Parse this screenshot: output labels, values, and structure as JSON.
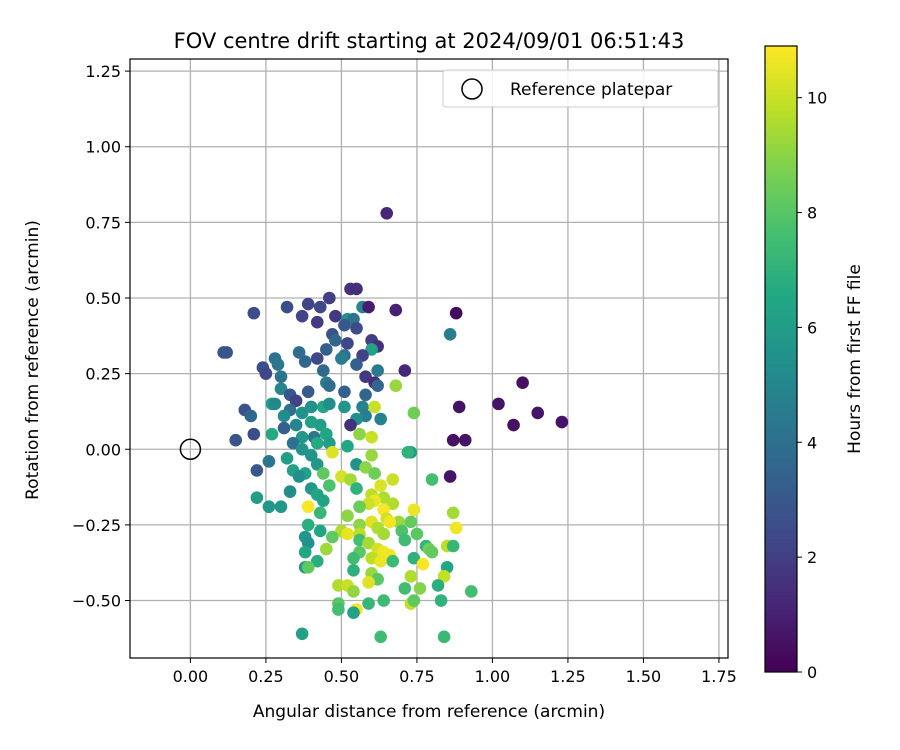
{
  "chart_data": {
    "type": "scatter",
    "title": "FOV centre drift starting at 2024/09/01 06:51:43",
    "xlabel": "Angular distance from reference (arcmin)",
    "ylabel": "Rotation from reference (arcmin)",
    "xlim": [
      -0.2,
      1.78
    ],
    "ylim": [
      -0.69,
      1.29
    ],
    "xticks": [
      0.0,
      0.25,
      0.5,
      0.75,
      1.0,
      1.25,
      1.5,
      1.75
    ],
    "xtick_labels": [
      "0.00",
      "0.25",
      "0.50",
      "0.75",
      "1.00",
      "1.25",
      "1.50",
      "1.75"
    ],
    "yticks": [
      -0.5,
      -0.25,
      0.0,
      0.25,
      0.5,
      0.75,
      1.0,
      1.25
    ],
    "ytick_labels": [
      "−0.50",
      "−0.25",
      "0.00",
      "0.25",
      "0.50",
      "0.75",
      "1.00",
      "1.25"
    ],
    "grid": true,
    "legend": {
      "location": "upper-right",
      "entries": [
        "Reference platepar"
      ]
    },
    "reference_point": {
      "x": 0.0,
      "y": 0.0,
      "label": "Reference platepar"
    },
    "colorbar": {
      "label": "Hours from first FF file",
      "colormap": "viridis",
      "range": [
        0,
        10.9
      ],
      "ticks": [
        0,
        2,
        4,
        6,
        8,
        10
      ],
      "tick_labels": [
        "0",
        "2",
        "4",
        "6",
        "8",
        "10"
      ]
    },
    "points": [
      {
        "x": 0.65,
        "y": 0.78,
        "c": 1.2
      },
      {
        "x": 0.53,
        "y": 0.53,
        "c": 1.6
      },
      {
        "x": 0.55,
        "y": 0.53,
        "c": 1.4
      },
      {
        "x": 0.46,
        "y": 0.5,
        "c": 2.0
      },
      {
        "x": 0.39,
        "y": 0.48,
        "c": 2.2
      },
      {
        "x": 0.32,
        "y": 0.47,
        "c": 2.6
      },
      {
        "x": 0.43,
        "y": 0.47,
        "c": 2.4
      },
      {
        "x": 0.57,
        "y": 0.47,
        "c": 5.0
      },
      {
        "x": 0.59,
        "y": 0.47,
        "c": 0.9
      },
      {
        "x": 0.68,
        "y": 0.46,
        "c": 1.0
      },
      {
        "x": 0.88,
        "y": 0.45,
        "c": 0.3
      },
      {
        "x": 0.21,
        "y": 0.45,
        "c": 2.6
      },
      {
        "x": 0.37,
        "y": 0.44,
        "c": 2.2
      },
      {
        "x": 0.48,
        "y": 0.44,
        "c": 1.8
      },
      {
        "x": 0.52,
        "y": 0.43,
        "c": 5.5
      },
      {
        "x": 0.54,
        "y": 0.43,
        "c": 4.2
      },
      {
        "x": 0.42,
        "y": 0.42,
        "c": 1.9
      },
      {
        "x": 0.51,
        "y": 0.41,
        "c": 3.0
      },
      {
        "x": 0.55,
        "y": 0.4,
        "c": 2.5
      },
      {
        "x": 0.86,
        "y": 0.38,
        "c": 4.6
      },
      {
        "x": 0.47,
        "y": 0.38,
        "c": 2.8
      },
      {
        "x": 0.48,
        "y": 0.36,
        "c": 3.6
      },
      {
        "x": 0.6,
        "y": 0.36,
        "c": 2.0
      },
      {
        "x": 0.52,
        "y": 0.35,
        "c": 2.3
      },
      {
        "x": 0.62,
        "y": 0.34,
        "c": 1.5
      },
      {
        "x": 0.6,
        "y": 0.33,
        "c": 6.2
      },
      {
        "x": 0.45,
        "y": 0.33,
        "c": 3.3
      },
      {
        "x": 0.11,
        "y": 0.32,
        "c": 3.0
      },
      {
        "x": 0.12,
        "y": 0.32,
        "c": 2.8
      },
      {
        "x": 0.36,
        "y": 0.32,
        "c": 3.9
      },
      {
        "x": 0.51,
        "y": 0.31,
        "c": 4.0
      },
      {
        "x": 0.57,
        "y": 0.31,
        "c": 2.1
      },
      {
        "x": 0.42,
        "y": 0.3,
        "c": 2.4
      },
      {
        "x": 0.28,
        "y": 0.3,
        "c": 4.1
      },
      {
        "x": 0.5,
        "y": 0.3,
        "c": 4.6
      },
      {
        "x": 0.38,
        "y": 0.29,
        "c": 3.6
      },
      {
        "x": 0.29,
        "y": 0.28,
        "c": 4.3
      },
      {
        "x": 0.55,
        "y": 0.28,
        "c": 3.3
      },
      {
        "x": 0.24,
        "y": 0.27,
        "c": 2.6
      },
      {
        "x": 0.44,
        "y": 0.26,
        "c": 3.7
      },
      {
        "x": 0.62,
        "y": 0.26,
        "c": 4.4
      },
      {
        "x": 0.71,
        "y": 0.26,
        "c": 1.2
      },
      {
        "x": 0.25,
        "y": 0.25,
        "c": 2.3
      },
      {
        "x": 0.3,
        "y": 0.24,
        "c": 4.2
      },
      {
        "x": 0.58,
        "y": 0.24,
        "c": 1.8
      },
      {
        "x": 0.45,
        "y": 0.22,
        "c": 4.6
      },
      {
        "x": 0.61,
        "y": 0.22,
        "c": 1.3
      },
      {
        "x": 0.68,
        "y": 0.21,
        "c": 9.2
      },
      {
        "x": 0.46,
        "y": 0.21,
        "c": 3.9
      },
      {
        "x": 0.62,
        "y": 0.21,
        "c": 3.6
      },
      {
        "x": 1.1,
        "y": 0.22,
        "c": 0.5
      },
      {
        "x": 0.3,
        "y": 0.2,
        "c": 4.9
      },
      {
        "x": 0.39,
        "y": 0.19,
        "c": 3.1
      },
      {
        "x": 0.51,
        "y": 0.19,
        "c": 3.3
      },
      {
        "x": 0.33,
        "y": 0.18,
        "c": 3.0
      },
      {
        "x": 0.58,
        "y": 0.18,
        "c": 3.6
      },
      {
        "x": 0.35,
        "y": 0.16,
        "c": 2.1
      },
      {
        "x": 1.02,
        "y": 0.15,
        "c": 0.6
      },
      {
        "x": 0.27,
        "y": 0.15,
        "c": 6.0
      },
      {
        "x": 0.28,
        "y": 0.15,
        "c": 5.1
      },
      {
        "x": 0.44,
        "y": 0.14,
        "c": 6.5
      },
      {
        "x": 0.46,
        "y": 0.15,
        "c": 5.3
      },
      {
        "x": 0.57,
        "y": 0.14,
        "c": 4.8
      },
      {
        "x": 0.61,
        "y": 0.14,
        "c": 10.0
      },
      {
        "x": 0.89,
        "y": 0.14,
        "c": 0.5
      },
      {
        "x": 0.18,
        "y": 0.13,
        "c": 2.7
      },
      {
        "x": 0.4,
        "y": 0.14,
        "c": 5.5
      },
      {
        "x": 0.51,
        "y": 0.14,
        "c": 5.7
      },
      {
        "x": 0.33,
        "y": 0.13,
        "c": 4.0
      },
      {
        "x": 0.37,
        "y": 0.12,
        "c": 5.5
      },
      {
        "x": 1.15,
        "y": 0.12,
        "c": 0.6
      },
      {
        "x": 0.74,
        "y": 0.12,
        "c": 8.5
      },
      {
        "x": 0.2,
        "y": 0.11,
        "c": 3.6
      },
      {
        "x": 0.31,
        "y": 0.11,
        "c": 5.3
      },
      {
        "x": 0.58,
        "y": 0.11,
        "c": 4.6
      },
      {
        "x": 0.55,
        "y": 0.1,
        "c": 5.3
      },
      {
        "x": 0.63,
        "y": 0.1,
        "c": 4.8
      },
      {
        "x": 0.4,
        "y": 0.09,
        "c": 6.2
      },
      {
        "x": 0.53,
        "y": 0.08,
        "c": 1.5
      },
      {
        "x": 1.23,
        "y": 0.09,
        "c": 0.6
      },
      {
        "x": 1.07,
        "y": 0.08,
        "c": 0.5
      },
      {
        "x": 0.35,
        "y": 0.08,
        "c": 4.9
      },
      {
        "x": 0.43,
        "y": 0.08,
        "c": 6.0
      },
      {
        "x": 0.31,
        "y": 0.07,
        "c": 3.3
      },
      {
        "x": 0.27,
        "y": 0.05,
        "c": 6.6
      },
      {
        "x": 0.45,
        "y": 0.05,
        "c": 6.5
      },
      {
        "x": 0.21,
        "y": 0.05,
        "c": 2.6
      },
      {
        "x": 0.56,
        "y": 0.05,
        "c": 9.0
      },
      {
        "x": 0.6,
        "y": 0.04,
        "c": 10.0
      },
      {
        "x": 0.37,
        "y": 0.04,
        "c": 5.8
      },
      {
        "x": 0.41,
        "y": 0.04,
        "c": 4.4
      },
      {
        "x": 0.87,
        "y": 0.03,
        "c": 0.5
      },
      {
        "x": 0.91,
        "y": 0.03,
        "c": 0.6
      },
      {
        "x": 0.15,
        "y": 0.03,
        "c": 2.8
      },
      {
        "x": 0.34,
        "y": 0.02,
        "c": 4.1
      },
      {
        "x": 0.42,
        "y": 0.02,
        "c": 6.6
      },
      {
        "x": 0.46,
        "y": 0.02,
        "c": 6.0
      },
      {
        "x": 0.37,
        "y": 0.0,
        "c": 5.6
      },
      {
        "x": 0.52,
        "y": 0.01,
        "c": 6.5
      },
      {
        "x": 0.73,
        "y": -0.01,
        "c": 6.0
      },
      {
        "x": 0.72,
        "y": -0.01,
        "c": 7.0
      },
      {
        "x": 0.47,
        "y": -0.01,
        "c": 10.3
      },
      {
        "x": 0.6,
        "y": -0.02,
        "c": 9.2
      },
      {
        "x": 0.4,
        "y": -0.02,
        "c": 5.6
      },
      {
        "x": 0.32,
        "y": -0.03,
        "c": 6.0
      },
      {
        "x": 0.26,
        "y": -0.04,
        "c": 4.2
      },
      {
        "x": 0.55,
        "y": -0.05,
        "c": 5.5
      },
      {
        "x": 0.42,
        "y": -0.05,
        "c": 5.8
      },
      {
        "x": 0.58,
        "y": -0.06,
        "c": 9.0
      },
      {
        "x": 0.22,
        "y": -0.07,
        "c": 3.0
      },
      {
        "x": 0.34,
        "y": -0.07,
        "c": 6.2
      },
      {
        "x": 0.38,
        "y": -0.08,
        "c": 6.3
      },
      {
        "x": 0.44,
        "y": -0.08,
        "c": 8.2
      },
      {
        "x": 0.61,
        "y": -0.08,
        "c": 8.5
      },
      {
        "x": 0.36,
        "y": -0.09,
        "c": 5.4
      },
      {
        "x": 0.86,
        "y": -0.09,
        "c": 0.6
      },
      {
        "x": 0.5,
        "y": -0.09,
        "c": 10.2
      },
      {
        "x": 0.67,
        "y": -0.1,
        "c": 10.0
      },
      {
        "x": 0.8,
        "y": -0.1,
        "c": 7.6
      },
      {
        "x": 0.53,
        "y": -0.1,
        "c": 9.4
      },
      {
        "x": 0.46,
        "y": -0.12,
        "c": 7.8
      },
      {
        "x": 0.4,
        "y": -0.13,
        "c": 5.8
      },
      {
        "x": 0.63,
        "y": -0.12,
        "c": 10.3
      },
      {
        "x": 0.55,
        "y": -0.13,
        "c": 7.0
      },
      {
        "x": 0.33,
        "y": -0.14,
        "c": 5.3
      },
      {
        "x": 0.42,
        "y": -0.15,
        "c": 6.4
      },
      {
        "x": 0.6,
        "y": -0.15,
        "c": 9.8
      },
      {
        "x": 0.64,
        "y": -0.16,
        "c": 9.6
      },
      {
        "x": 0.22,
        "y": -0.16,
        "c": 6.0
      },
      {
        "x": 0.61,
        "y": -0.17,
        "c": 10.6
      },
      {
        "x": 0.44,
        "y": -0.17,
        "c": 6.3
      },
      {
        "x": 0.59,
        "y": -0.18,
        "c": 10.1
      },
      {
        "x": 0.67,
        "y": -0.18,
        "c": 9.6
      },
      {
        "x": 0.3,
        "y": -0.19,
        "c": 5.7
      },
      {
        "x": 0.26,
        "y": -0.19,
        "c": 5.8
      },
      {
        "x": 0.39,
        "y": -0.19,
        "c": 10.8
      },
      {
        "x": 0.56,
        "y": -0.19,
        "c": 8.4
      },
      {
        "x": 0.64,
        "y": -0.2,
        "c": 10.8
      },
      {
        "x": 0.74,
        "y": -0.2,
        "c": 10.6
      },
      {
        "x": 0.87,
        "y": -0.21,
        "c": 9.4
      },
      {
        "x": 0.43,
        "y": -0.21,
        "c": 7.2
      },
      {
        "x": 0.52,
        "y": -0.22,
        "c": 9.0
      },
      {
        "x": 0.65,
        "y": -0.23,
        "c": 10.1
      },
      {
        "x": 0.6,
        "y": -0.24,
        "c": 10.4
      },
      {
        "x": 0.69,
        "y": -0.24,
        "c": 9.2
      },
      {
        "x": 0.73,
        "y": -0.24,
        "c": 8.3
      },
      {
        "x": 0.66,
        "y": -0.24,
        "c": 10.7
      },
      {
        "x": 0.39,
        "y": -0.25,
        "c": 6.8
      },
      {
        "x": 0.56,
        "y": -0.25,
        "c": 9.0
      },
      {
        "x": 0.88,
        "y": -0.26,
        "c": 10.7
      },
      {
        "x": 0.62,
        "y": -0.26,
        "c": 9.6
      },
      {
        "x": 0.7,
        "y": -0.27,
        "c": 7.8
      },
      {
        "x": 0.43,
        "y": -0.27,
        "c": 6.4
      },
      {
        "x": 0.5,
        "y": -0.27,
        "c": 9.6
      },
      {
        "x": 0.56,
        "y": -0.28,
        "c": 9.8
      },
      {
        "x": 0.75,
        "y": -0.28,
        "c": 8.1
      },
      {
        "x": 0.52,
        "y": -0.28,
        "c": 10.5
      },
      {
        "x": 0.64,
        "y": -0.28,
        "c": 9.4
      },
      {
        "x": 0.38,
        "y": -0.29,
        "c": 5.8
      },
      {
        "x": 0.47,
        "y": -0.29,
        "c": 8.2
      },
      {
        "x": 0.56,
        "y": -0.3,
        "c": 7.6
      },
      {
        "x": 0.71,
        "y": -0.3,
        "c": 7.5
      },
      {
        "x": 0.59,
        "y": -0.31,
        "c": 9.4
      },
      {
        "x": 0.39,
        "y": -0.31,
        "c": 5.5
      },
      {
        "x": 0.78,
        "y": -0.32,
        "c": 7.1
      },
      {
        "x": 0.85,
        "y": -0.32,
        "c": 9.8
      },
      {
        "x": 0.87,
        "y": -0.32,
        "c": 7.2
      },
      {
        "x": 0.62,
        "y": -0.33,
        "c": 10.2
      },
      {
        "x": 0.45,
        "y": -0.33,
        "c": 9.3
      },
      {
        "x": 0.79,
        "y": -0.33,
        "c": 8.5
      },
      {
        "x": 0.64,
        "y": -0.34,
        "c": 10.7
      },
      {
        "x": 0.38,
        "y": -0.34,
        "c": 6.5
      },
      {
        "x": 0.56,
        "y": -0.34,
        "c": 8.1
      },
      {
        "x": 0.8,
        "y": -0.34,
        "c": 8.3
      },
      {
        "x": 0.66,
        "y": -0.35,
        "c": 10.7
      },
      {
        "x": 0.74,
        "y": -0.36,
        "c": 7.0
      },
      {
        "x": 0.54,
        "y": -0.36,
        "c": 7.5
      },
      {
        "x": 0.6,
        "y": -0.36,
        "c": 9.8
      },
      {
        "x": 0.63,
        "y": -0.37,
        "c": 10.6
      },
      {
        "x": 0.67,
        "y": -0.37,
        "c": 7.4
      },
      {
        "x": 0.42,
        "y": -0.37,
        "c": 6.8
      },
      {
        "x": 0.77,
        "y": -0.38,
        "c": 10.8
      },
      {
        "x": 0.38,
        "y": -0.39,
        "c": 5.9
      },
      {
        "x": 0.85,
        "y": -0.39,
        "c": 6.5
      },
      {
        "x": 0.39,
        "y": -0.39,
        "c": 8.2
      },
      {
        "x": 0.54,
        "y": -0.4,
        "c": 6.9
      },
      {
        "x": 0.6,
        "y": -0.41,
        "c": 9.2
      },
      {
        "x": 0.84,
        "y": -0.42,
        "c": 9.9
      },
      {
        "x": 0.73,
        "y": -0.42,
        "c": 9.6
      },
      {
        "x": 0.62,
        "y": -0.43,
        "c": 8.1
      },
      {
        "x": 0.59,
        "y": -0.44,
        "c": 10.4
      },
      {
        "x": 0.82,
        "y": -0.45,
        "c": 6.8
      },
      {
        "x": 0.49,
        "y": -0.45,
        "c": 9.6
      },
      {
        "x": 0.52,
        "y": -0.45,
        "c": 10.0
      },
      {
        "x": 0.71,
        "y": -0.46,
        "c": 7.5
      },
      {
        "x": 0.76,
        "y": -0.46,
        "c": 8.9
      },
      {
        "x": 0.93,
        "y": -0.47,
        "c": 7.6
      },
      {
        "x": 0.54,
        "y": -0.47,
        "c": 9.1
      },
      {
        "x": 0.64,
        "y": -0.5,
        "c": 7.4
      },
      {
        "x": 0.83,
        "y": -0.5,
        "c": 7.0
      },
      {
        "x": 0.49,
        "y": -0.51,
        "c": 8.0
      },
      {
        "x": 0.73,
        "y": -0.51,
        "c": 9.8
      },
      {
        "x": 0.74,
        "y": -0.5,
        "c": 8.2
      },
      {
        "x": 0.59,
        "y": -0.51,
        "c": 7.2
      },
      {
        "x": 0.49,
        "y": -0.53,
        "c": 7.6
      },
      {
        "x": 0.55,
        "y": -0.53,
        "c": 10.8
      },
      {
        "x": 0.54,
        "y": -0.54,
        "c": 6.2
      },
      {
        "x": 0.37,
        "y": -0.61,
        "c": 6.1
      },
      {
        "x": 0.63,
        "y": -0.62,
        "c": 7.5
      },
      {
        "x": 0.84,
        "y": -0.62,
        "c": 7.3
      }
    ]
  }
}
